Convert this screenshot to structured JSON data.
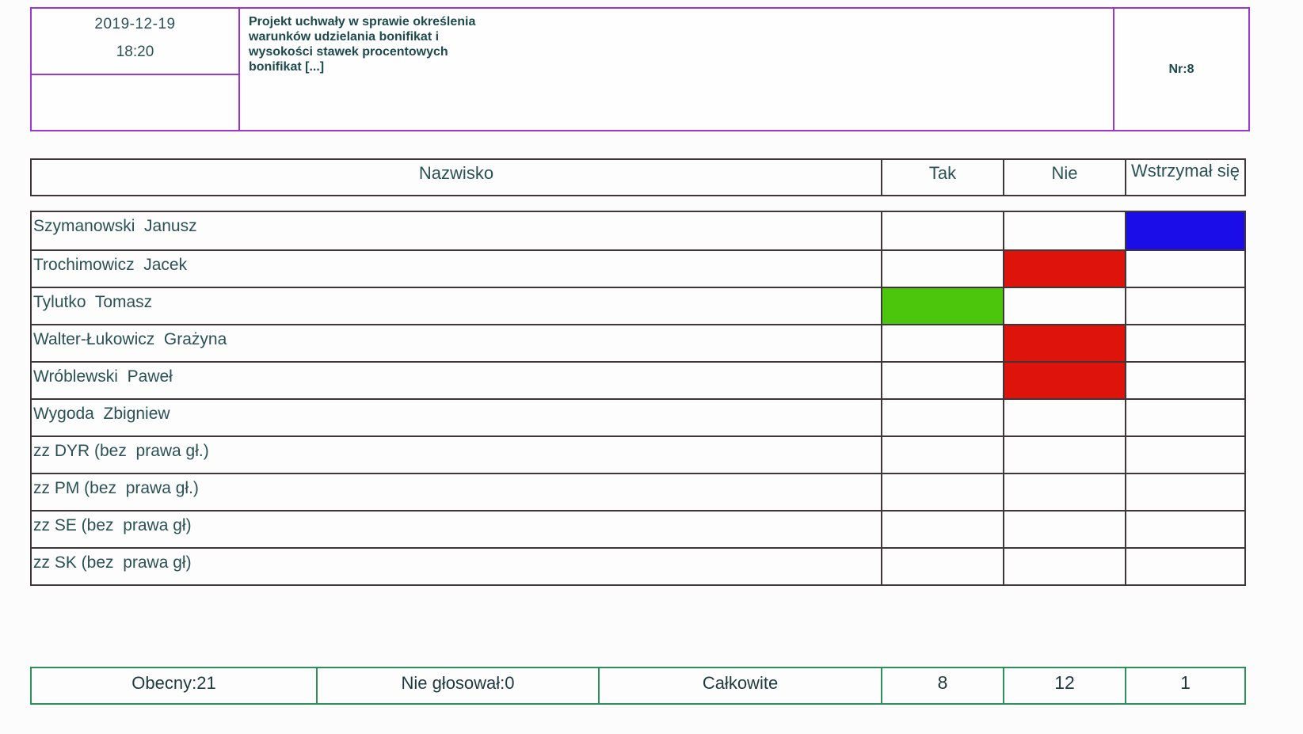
{
  "header": {
    "date": "2019-12-19",
    "time": "18:20",
    "title": "Projekt uchwały w sprawie określenia warunków udzielania bonifikat i wysokości stawek procentowych bonifikat [...]",
    "number_label": "Nr:8"
  },
  "table": {
    "columns": {
      "name": "Nazwisko",
      "yes": "Tak",
      "no": "Nie",
      "abstain": "Wstrzymał się"
    },
    "rows": [
      {
        "name": "Szymanowski  Janusz",
        "vote": "abstain"
      },
      {
        "name": "Trochimowicz  Jacek",
        "vote": "no"
      },
      {
        "name": "Tylutko  Tomasz",
        "vote": "yes"
      },
      {
        "name": "Walter-Łukowicz  Grażyna",
        "vote": "no"
      },
      {
        "name": "Wróblewski  Paweł",
        "vote": "no"
      },
      {
        "name": "Wygoda  Zbigniew",
        "vote": "none"
      },
      {
        "name": "zz DYR (bez  prawa gł.)",
        "vote": "none"
      },
      {
        "name": "zz PM (bez  prawa gł.)",
        "vote": "none"
      },
      {
        "name": "zz SE (bez  prawa gł)",
        "vote": "none"
      },
      {
        "name": "zz SK (bez  prawa gł)",
        "vote": "none"
      }
    ]
  },
  "summary": {
    "present": "Obecny:21",
    "not_voted": "Nie głosował:0",
    "total_label": "Całkowite",
    "yes_count": "8",
    "no_count": "12",
    "abstain_count": "1"
  },
  "colors": {
    "yes": "#4cc60c",
    "no": "#de130b",
    "abstain": "#1a0de8",
    "header_border": "#9d36cf",
    "table_border": "#3e3639",
    "summary_border": "#2f8f5b",
    "text": "#2a5156"
  }
}
